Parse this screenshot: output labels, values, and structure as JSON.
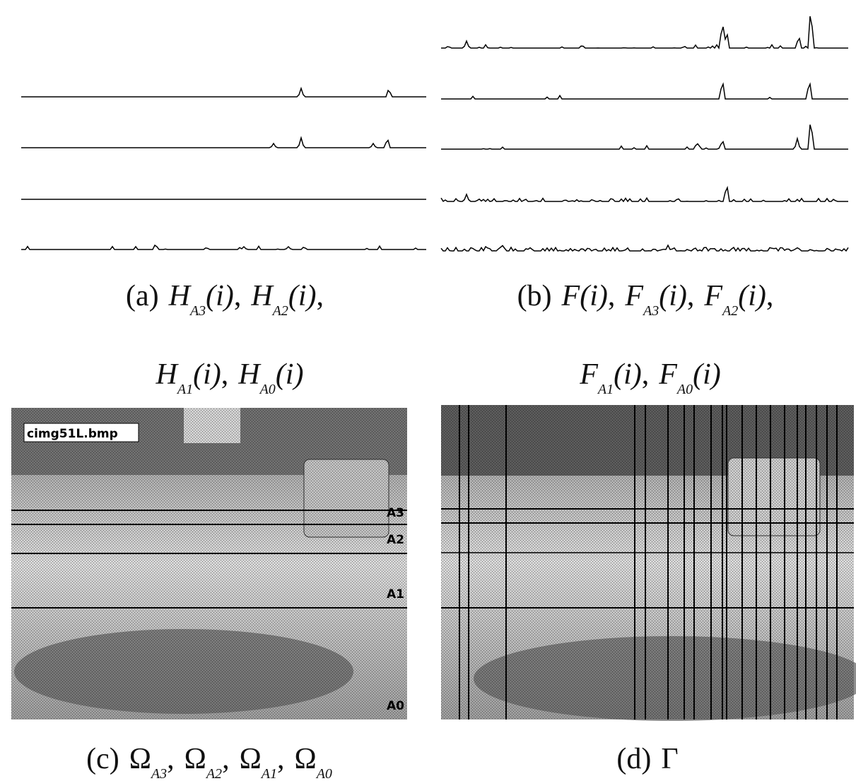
{
  "panels": [
    {
      "label": "(a)",
      "separator": ",",
      "lines": [
        [
          {
            "symbol": "H",
            "sub": "A3",
            "arg": "(i)"
          },
          {
            "symbol": "H",
            "sub": "A2",
            "arg": "(i)"
          }
        ],
        [
          {
            "symbol": "H",
            "sub": "A1",
            "arg": "(i)"
          },
          {
            "symbol": "H",
            "sub": "A0",
            "arg": "(i)"
          }
        ]
      ]
    },
    {
      "label": "(b)",
      "separator": ",",
      "lines": [
        [
          {
            "symbol": "F",
            "arg": "(i)"
          },
          {
            "symbol": "F",
            "sub": "A3",
            "arg": "(i)"
          },
          {
            "symbol": "F",
            "sub": "A2",
            "arg": "(i)"
          }
        ],
        [
          {
            "symbol": "F",
            "sub": "A1",
            "arg": "(i)"
          },
          {
            "symbol": "F",
            "sub": "A0",
            "arg": "(i)"
          }
        ]
      ]
    },
    {
      "label": "(c)",
      "separator": ",",
      "lines": [
        [
          {
            "symbol": "Ω",
            "sub": "A3"
          },
          {
            "symbol": "Ω",
            "sub": "A2"
          },
          {
            "symbol": "Ω",
            "sub": "A1"
          },
          {
            "symbol": "Ω",
            "sub": "A0"
          }
        ]
      ]
    },
    {
      "label": "(d)",
      "separator": ",",
      "lines": [
        [
          {
            "symbol": "Γ"
          }
        ]
      ]
    }
  ],
  "image_c": {
    "filename": "cimg51L.bmp",
    "regions": [
      "A3",
      "A2",
      "A1",
      "A0"
    ]
  }
}
